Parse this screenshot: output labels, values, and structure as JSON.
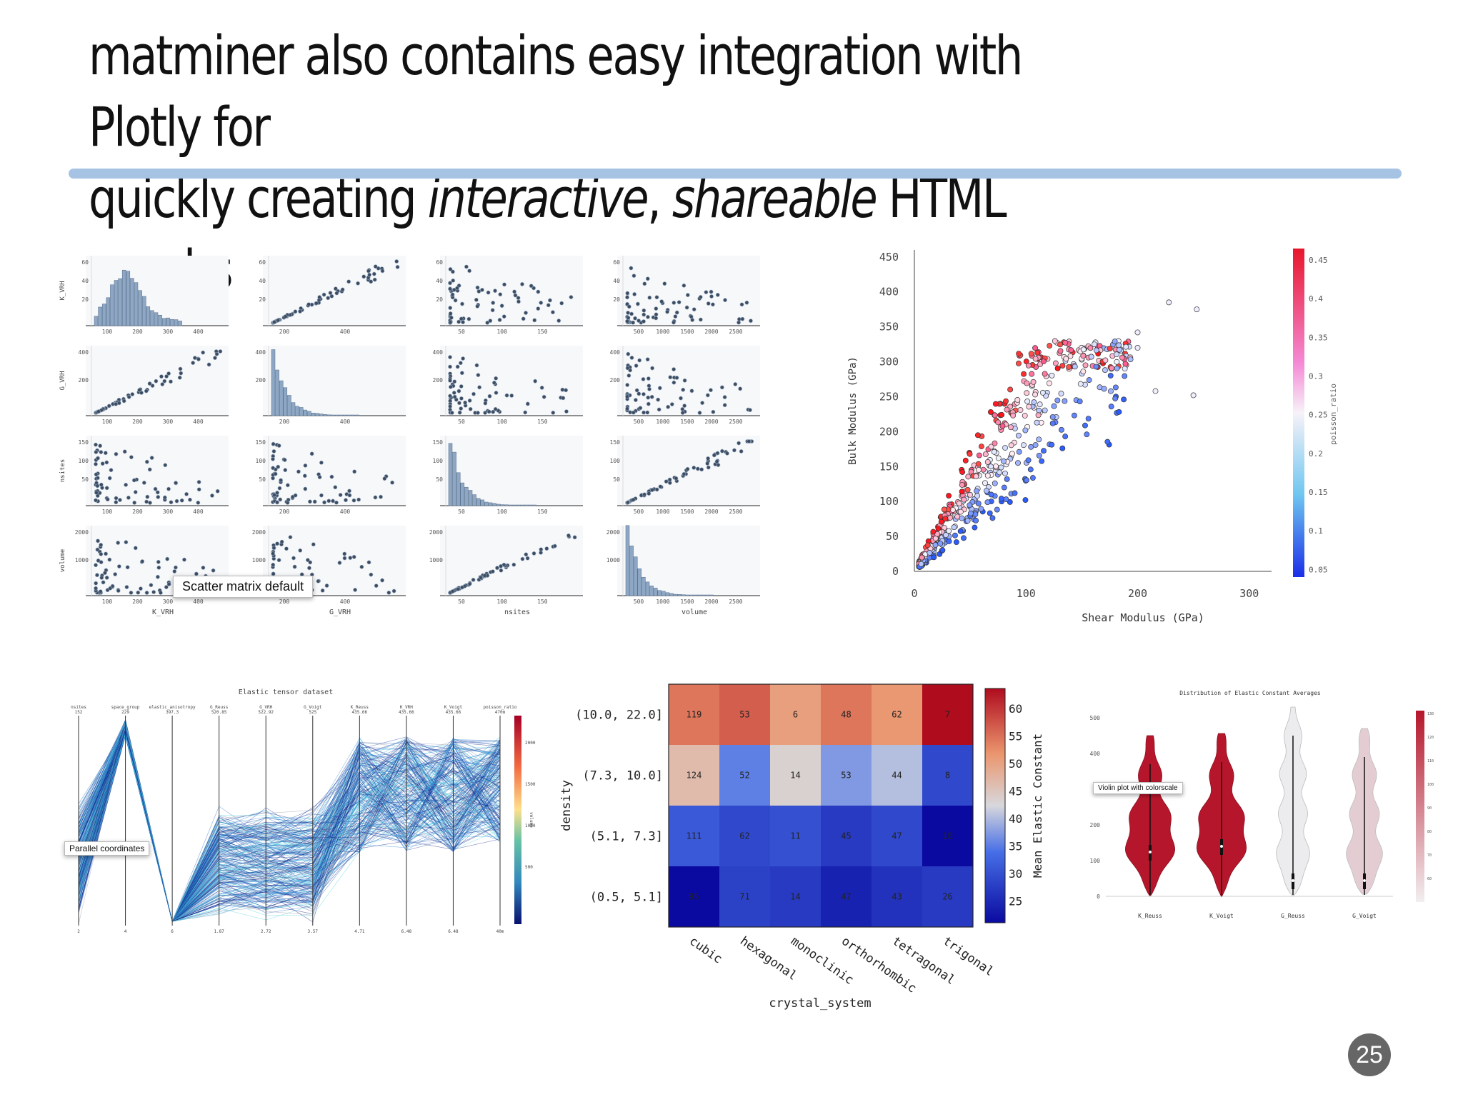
{
  "slide": {
    "title_line1": "matminer also contains easy integration with Plotly for",
    "title_line2_a": "quickly creating ",
    "title_line2_em1": "interactive",
    "title_line2_b": ", ",
    "title_line2_em2": "shareable",
    "title_line2_c": " HTML graphs",
    "page_number": "25"
  },
  "labels": {
    "scatter_matrix": "Scatter matrix default",
    "parallel": "Parallel coordinates",
    "violin": "Violin plot with colorscale"
  },
  "colors": {
    "accent_rule": "#a6c3e4",
    "violin_red": "#b5162b",
    "violin_light": "#ececef"
  },
  "chart_data": [
    {
      "type": "scatter",
      "name": "scatter_matrix",
      "variables": [
        "K_VRH",
        "G_VRH",
        "nsites",
        "volume"
      ],
      "row_ticks": [
        [
          "60",
          "40",
          "20"
        ],
        [
          "400",
          "200"
        ],
        [
          "150",
          "100",
          "50"
        ],
        [
          "2000",
          "1000"
        ]
      ],
      "col_ticks": [
        [
          "100",
          "200",
          "300",
          "400"
        ],
        [
          "200",
          "400"
        ],
        [
          "50",
          "100",
          "150"
        ],
        [
          "500",
          "1000",
          "1500",
          "2000",
          "2500"
        ]
      ]
    },
    {
      "type": "scatter",
      "name": "bulk_vs_shear",
      "xlabel": "Shear Modulus (GPa)",
      "ylabel": "Bulk Modulus (GPa)",
      "xlim": [
        0,
        320
      ],
      "ylim": [
        0,
        460
      ],
      "x_ticks": [
        "0",
        "100",
        "200",
        "300"
      ],
      "y_ticks": [
        "0",
        "50",
        "100",
        "150",
        "200",
        "250",
        "300",
        "350",
        "400",
        "450"
      ],
      "colorbar_title": "poisson_ratio",
      "colorbar_ticks": [
        "0.45",
        "0.4",
        "0.35",
        "0.3",
        "0.25",
        "0.2",
        "0.15",
        "0.1",
        "0.05"
      ],
      "highlight_points": [
        [
          228,
          385
        ],
        [
          253,
          375
        ],
        [
          200,
          342
        ],
        [
          200,
          320
        ],
        [
          250,
          252
        ],
        [
          216,
          258
        ]
      ]
    },
    {
      "type": "table",
      "name": "parallel_coordinates",
      "title": "Elastic tensor dataset",
      "axes": [
        "nsites",
        "space_group",
        "elastic_anisotropy",
        "G_Reuss",
        "G_VRH",
        "G_Voigt",
        "K_Reuss",
        "K_VRH",
        "K_Voigt",
        "poisson_ratio"
      ],
      "axis_tops": [
        "152",
        "229",
        "397.3",
        "520.85",
        "522.92",
        "525",
        "435.66",
        "435.66",
        "435.66",
        "470m"
      ],
      "bottom_ticks": [
        "2",
        "4",
        "6",
        "1.87",
        "2.72",
        "3.57",
        "4.71",
        "6.48",
        "6.48",
        "40m"
      ],
      "colorbar_title": "volume",
      "colorbar_ticks": [
        "2000",
        "1500",
        "1000",
        "500"
      ]
    },
    {
      "type": "heatmap",
      "name": "density_crystal_system",
      "xlabel": "crystal_system",
      "ylabel": "density",
      "categories": [
        "cubic",
        "hexagonal",
        "monoclinic",
        "orthorhombic",
        "tetragonal",
        "trigonal"
      ],
      "rows": [
        "(10.0, 22.0]",
        "(7.3, 10.0]",
        "(5.1, 7.3]",
        "(0.5, 5.1]"
      ],
      "counts": [
        [
          119,
          53,
          6,
          48,
          62,
          7
        ],
        [
          124,
          52,
          14,
          53,
          44,
          8
        ],
        [
          111,
          62,
          11,
          45,
          47,
          10
        ],
        [
          95,
          71,
          14,
          47,
          43,
          26
        ]
      ],
      "mean_elastic": [
        [
          55,
          57,
          51,
          55,
          52,
          64
        ],
        [
          47,
          36,
          44,
          38,
          41,
          30
        ],
        [
          32,
          30,
          31,
          28,
          30,
          22
        ],
        [
          22,
          29,
          28,
          25,
          27,
          28
        ]
      ],
      "colorbar_title": "Mean Elastic Constant",
      "colorbar_ticks": [
        "60",
        "55",
        "50",
        "45",
        "40",
        "35",
        "30",
        "25"
      ],
      "clim": [
        22,
        64
      ]
    },
    {
      "type": "area",
      "name": "violin",
      "title": "Distribution of Elastic Constant Averages",
      "categories": [
        "K_Reuss",
        "K_Voigt",
        "G_Reuss",
        "G_Voigt"
      ],
      "y_ticks": [
        "0",
        "100",
        "200",
        "400",
        "500"
      ],
      "colorbar_ticks": [
        "130",
        "120",
        "110",
        "100",
        "90",
        "80",
        "70",
        "60"
      ]
    }
  ]
}
